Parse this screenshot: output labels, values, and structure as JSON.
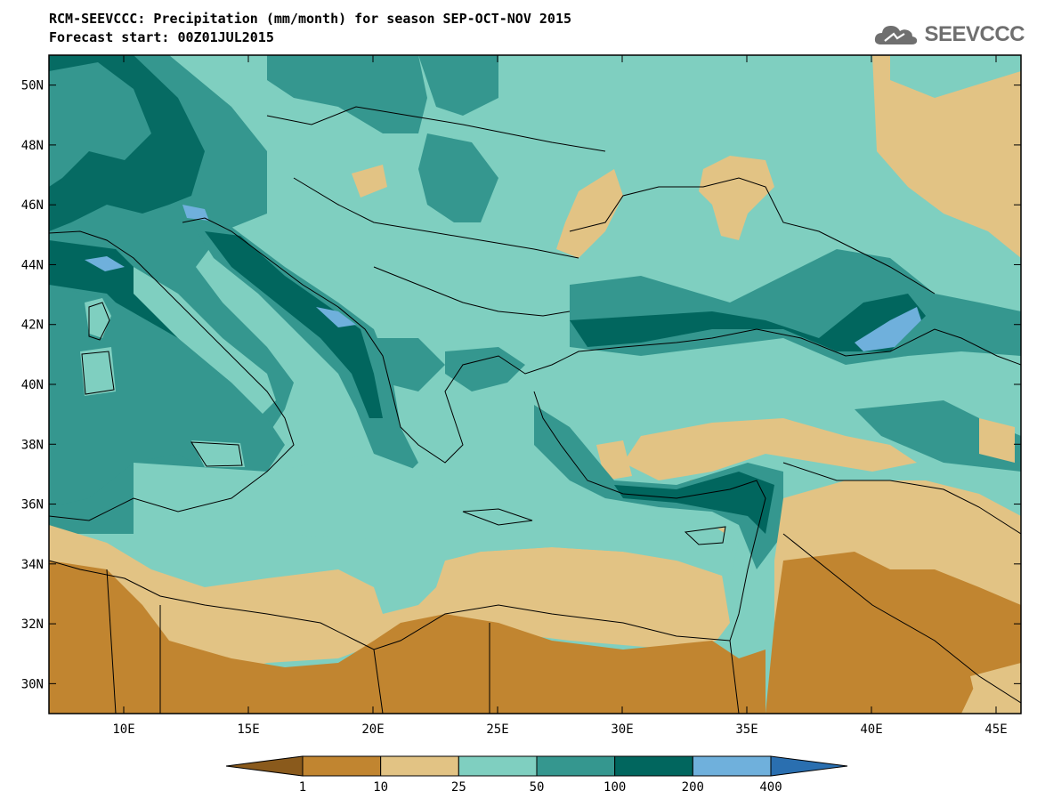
{
  "header": {
    "title": "RCM-SEEVCCC: Precipitation (mm/month) for season SEP-OCT-NOV 2015",
    "subtitle": "Forecast start: 00Z01JUL2015"
  },
  "logo": {
    "text": "SEEVCCC",
    "icon": "cloud-icon"
  },
  "map": {
    "lat_labels": [
      "50N",
      "48N",
      "46N",
      "44N",
      "42N",
      "40N",
      "38N",
      "36N",
      "34N",
      "32N",
      "30N"
    ],
    "lon_labels": [
      "10E",
      "15E",
      "20E",
      "25E",
      "30E",
      "35E",
      "40E",
      "45E"
    ],
    "lon_range": [
      7,
      46
    ],
    "lat_range": [
      29,
      51
    ]
  },
  "colorbar": {
    "levels": [
      "1",
      "10",
      "25",
      "50",
      "100",
      "200",
      "400"
    ],
    "colors": [
      "#8a5a1c",
      "#c18530",
      "#e2c384",
      "#7fcfc0",
      "#35978f",
      "#01665e",
      "#6fb0dc",
      "#2a6fb0"
    ]
  }
}
